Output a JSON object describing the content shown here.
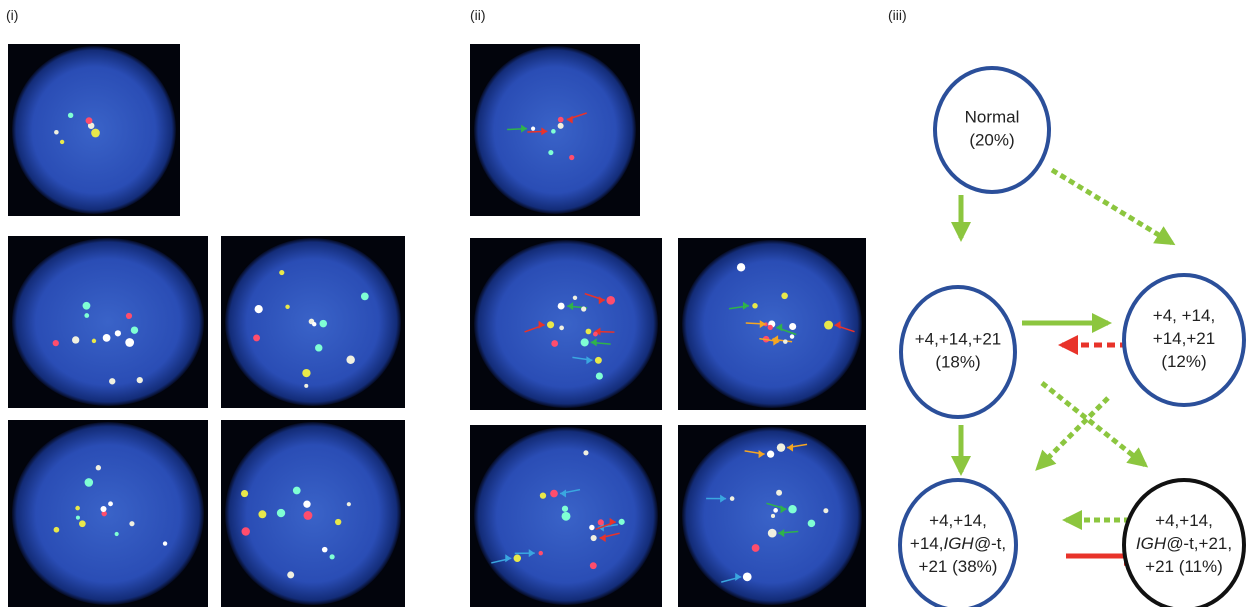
{
  "panels": [
    {
      "label": "(i)"
    },
    {
      "label": "(ii)"
    },
    {
      "label": "(iii)"
    }
  ],
  "nodes": [
    {
      "lines": [
        [
          {
            "text": "Normal"
          }
        ],
        [
          {
            "text": "(20%)"
          }
        ]
      ]
    },
    {
      "lines": [
        [
          {
            "text": "+4,+14,+21"
          }
        ],
        [
          {
            "text": "(18%)"
          }
        ]
      ]
    },
    {
      "lines": [
        [
          {
            "text": "+4, +14,"
          }
        ],
        [
          {
            "text": "+14,+21"
          }
        ],
        [
          {
            "text": "(12%)"
          }
        ]
      ]
    },
    {
      "lines": [
        [
          {
            "text": "+4,+14,"
          }
        ],
        [
          {
            "text": "+14,"
          },
          {
            "text": "IGH@",
            "italic": true
          },
          {
            "text": "-t,"
          }
        ],
        [
          {
            "text": "+21 (38%)"
          }
        ]
      ]
    },
    {
      "lines": [
        [
          {
            "text": "+4,+14,"
          }
        ],
        [
          {
            "text": "IGH@",
            "italic": true
          },
          {
            "text": "-t,+21,"
          }
        ],
        [
          {
            "text": "+21 (11%)"
          }
        ]
      ]
    }
  ]
}
